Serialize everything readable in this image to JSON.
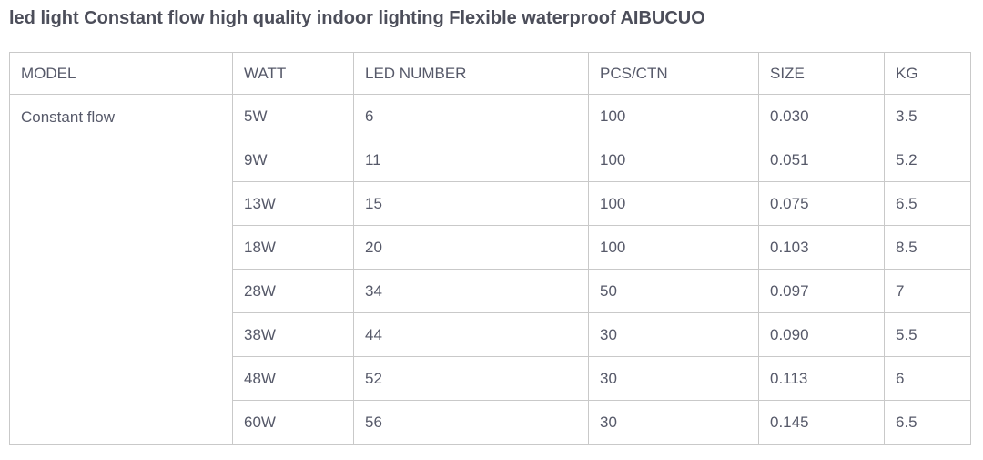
{
  "title": "led light Constant flow high quality indoor lighting Flexible waterproof AIBUCUO",
  "colors": {
    "title_text": "#4c4e5a",
    "cell_text": "#565969",
    "bold_text": "#50525f",
    "border": "#c9c9c9",
    "background": "#ffffff"
  },
  "table": {
    "headers": [
      "MODEL",
      "WATT",
      "LED NUMBER",
      "PCS/CTN",
      "SIZE",
      "KG"
    ],
    "model": "Constant flow",
    "rows": [
      {
        "watt": "5W",
        "led_number": "6",
        "pcs_ctn": "100",
        "size": "0.030",
        "kg": "3.5"
      },
      {
        "watt": "9W",
        "led_number": "11",
        "pcs_ctn": "100",
        "size": "0.051",
        "kg": "5.2"
      },
      {
        "watt": "13W",
        "led_number": "15",
        "pcs_ctn": "100",
        "size": "0.075",
        "kg": "6.5"
      },
      {
        "watt": "18W",
        "led_number": "20",
        "pcs_ctn": "100",
        "size": "0.103",
        "kg": "8.5"
      },
      {
        "watt": "28W",
        "led_number": "34",
        "pcs_ctn": "50",
        "size": "0.097",
        "kg": "7"
      },
      {
        "watt": "38W",
        "led_number": "44",
        "pcs_ctn": "30",
        "size": "0.090",
        "kg": "5.5"
      },
      {
        "watt": "48W",
        "led_number": "52",
        "pcs_ctn": "30",
        "size": "0.113",
        "kg": "6"
      },
      {
        "watt": "60W",
        "led_number": "56",
        "pcs_ctn": "30",
        "size": "0.145",
        "kg": "6.5"
      }
    ]
  }
}
